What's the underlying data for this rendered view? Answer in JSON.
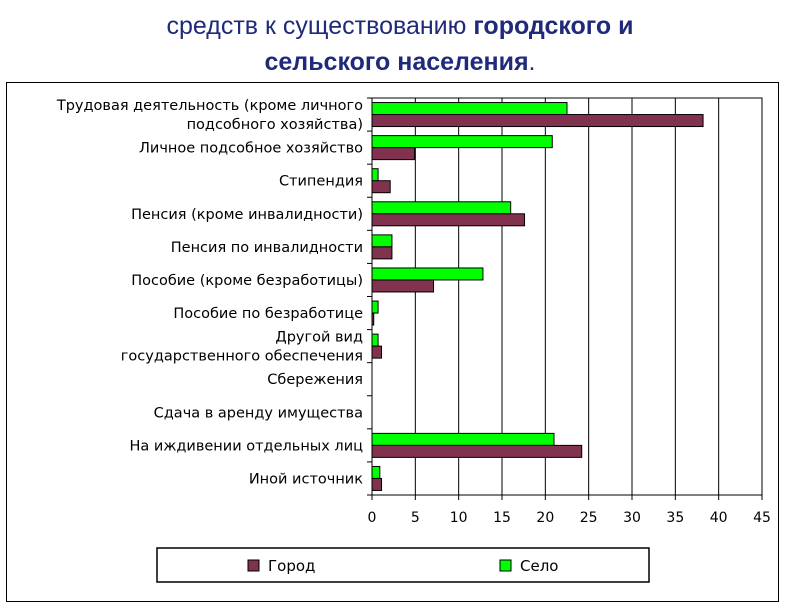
{
  "title": {
    "line1_regular": "средств к существованию ",
    "line1_bold": "городского и",
    "line2_bold": "сельского населения",
    "line2_end": "."
  },
  "chart_data": {
    "type": "bar",
    "orientation": "horizontal",
    "categories": [
      [
        "Трудовая деятельность (кроме личного",
        "подсобного хозяйства)"
      ],
      [
        "Личное подсобное хозяйство"
      ],
      [
        "Стипендия"
      ],
      [
        "Пенсия (кроме инвалидности)"
      ],
      [
        "Пенсия по инвалидности"
      ],
      [
        "Пособие (кроме безработицы)"
      ],
      [
        "Пособие по безработице"
      ],
      [
        "Другой вид",
        "государственного обеспечения"
      ],
      [
        "Сбережения"
      ],
      [
        "Сдача в аренду имущества"
      ],
      [
        "На иждивении отдельных лиц"
      ],
      [
        "Иной источник"
      ]
    ],
    "series": [
      {
        "name": "Село",
        "color": "#00ff00",
        "values": [
          22.5,
          20.8,
          0.7,
          16.0,
          2.3,
          12.8,
          0.7,
          0.7,
          0,
          0,
          21.0,
          0.9
        ]
      },
      {
        "name": "Город",
        "color": "#80324f",
        "values": [
          38.2,
          4.9,
          2.1,
          17.6,
          2.3,
          7.1,
          0.2,
          1.1,
          0,
          0,
          24.2,
          1.1
        ]
      }
    ],
    "xlim": [
      0,
      45
    ],
    "xticks": [
      0,
      5,
      10,
      15,
      20,
      25,
      30,
      35,
      40,
      45
    ],
    "grid": true,
    "legend_position": "bottom",
    "legend_order": [
      "Город",
      "Село"
    ]
  }
}
